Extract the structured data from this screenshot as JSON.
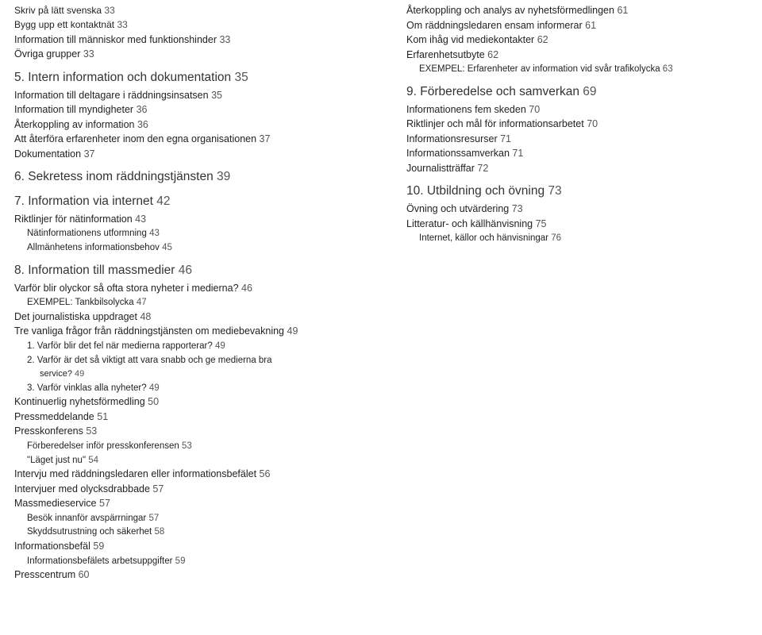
{
  "left": [
    {
      "lvl": "l0",
      "t": "Skriv på lätt svenska",
      "p": "33"
    },
    {
      "lvl": "l0",
      "t": "Bygg upp ett kontaktnät",
      "p": "33"
    },
    {
      "lvl": "h1",
      "t": "Information till människor med funktionshinder",
      "p": "33"
    },
    {
      "lvl": "h1",
      "t": "Övriga grupper",
      "p": "33"
    },
    {
      "lvl": "chapter",
      "t": "5. Intern information och dokumentation",
      "p": "35"
    },
    {
      "lvl": "h1",
      "t": "Information till deltagare i räddningsinsatsen",
      "p": "35"
    },
    {
      "lvl": "h1",
      "t": "Information till myndigheter",
      "p": "36"
    },
    {
      "lvl": "h1",
      "t": "Återkoppling av information",
      "p": "36"
    },
    {
      "lvl": "h1",
      "t": "Att återföra erfarenheter inom den egna organisationen",
      "p": "37"
    },
    {
      "lvl": "h1",
      "t": "Dokumentation",
      "p": "37"
    },
    {
      "lvl": "chapter",
      "t": "6. Sekretess inom räddningstjänsten",
      "p": "39"
    },
    {
      "lvl": "chapter",
      "t": "7. Information via internet",
      "p": "42"
    },
    {
      "lvl": "h1",
      "t": "Riktlinjer för nätinformation",
      "p": "43"
    },
    {
      "lvl": "h2",
      "t": "Nätinformationens utformning",
      "p": "43"
    },
    {
      "lvl": "h2",
      "t": "Allmänhetens informationsbehov",
      "p": "45"
    },
    {
      "lvl": "chapter",
      "t": "8. Information till massmedier",
      "p": "46"
    },
    {
      "lvl": "h1",
      "t": "Varför blir olyckor så ofta stora nyheter i medierna?",
      "p": "46"
    },
    {
      "lvl": "h2",
      "t": "EXEMPEL: Tankbilsolycka",
      "p": "47"
    },
    {
      "lvl": "h1",
      "t": "Det journalistiska uppdraget",
      "p": "48"
    },
    {
      "lvl": "h1",
      "t": "Tre vanliga frågor från räddningstjänsten om mediebevakning",
      "p": "49"
    },
    {
      "lvl": "h2",
      "t": "1. Varför blir det fel när medierna rapporterar?",
      "p": "49"
    },
    {
      "lvl": "h2",
      "t": "2. Varför är det så viktigt att vara snabb och ge medierna bra",
      "p": ""
    },
    {
      "lvl": "h3",
      "t": "service?",
      "p": "49"
    },
    {
      "lvl": "h2",
      "t": "3. Varför vinklas alla nyheter?",
      "p": "49"
    },
    {
      "lvl": "h1",
      "t": "Kontinuerlig nyhetsförmedling",
      "p": "50"
    },
    {
      "lvl": "h1",
      "t": "Pressmeddelande",
      "p": "51"
    },
    {
      "lvl": "h1",
      "t": "Presskonferens",
      "p": "53"
    },
    {
      "lvl": "h2",
      "t": "Förberedelser inför presskonferensen",
      "p": "53"
    },
    {
      "lvl": "h2",
      "t": "\"Läget just nu\"",
      "p": "54"
    },
    {
      "lvl": "h1",
      "t": "Intervju med räddningsledaren eller informationsbefälet",
      "p": "56"
    },
    {
      "lvl": "h1",
      "t": "Intervjuer med olycksdrabbade",
      "p": "57"
    },
    {
      "lvl": "h1",
      "t": "Massmedieservice",
      "p": "57"
    },
    {
      "lvl": "h2",
      "t": "Besök innanför avspärrningar",
      "p": "57"
    },
    {
      "lvl": "h2",
      "t": "Skyddsutrustning och säkerhet",
      "p": "58"
    },
    {
      "lvl": "h1",
      "t": "Informationsbefäl",
      "p": "59"
    },
    {
      "lvl": "h2",
      "t": "Informationsbefälets arbetsuppgifter",
      "p": "59"
    },
    {
      "lvl": "h1",
      "t": "Presscentrum",
      "p": "60"
    }
  ],
  "right": [
    {
      "lvl": "h1",
      "t": "Återkoppling och analys av nyhetsförmedlingen",
      "p": "61"
    },
    {
      "lvl": "h1",
      "t": "Om räddningsledaren ensam informerar",
      "p": "61"
    },
    {
      "lvl": "h1",
      "t": "Kom ihåg vid mediekontakter",
      "p": "62"
    },
    {
      "lvl": "h1",
      "t": "Erfarenhetsutbyte",
      "p": "62"
    },
    {
      "lvl": "h2",
      "t": "EXEMPEL: Erfarenheter av information vid svår trafikolycka",
      "p": "63"
    },
    {
      "lvl": "chapter",
      "t": "9. Förberedelse och samverkan",
      "p": "69"
    },
    {
      "lvl": "h1",
      "t": "Informationens fem skeden",
      "p": "70"
    },
    {
      "lvl": "h1",
      "t": "Riktlinjer och mål för informationsarbetet",
      "p": "70"
    },
    {
      "lvl": "h1",
      "t": "Informationsresurser",
      "p": "71"
    },
    {
      "lvl": "h1",
      "t": "Informationssamverkan",
      "p": "71"
    },
    {
      "lvl": "h1",
      "t": "Journalistträffar",
      "p": "72"
    },
    {
      "lvl": "chapter",
      "t": "10. Utbildning och övning",
      "p": "73"
    },
    {
      "lvl": "h1",
      "t": "Övning och utvärdering",
      "p": "73"
    },
    {
      "lvl": "h1",
      "t": "Litteratur- och källhänvisning",
      "p": "75"
    },
    {
      "lvl": "h2",
      "t": "Internet, källor och hänvisningar",
      "p": "76"
    }
  ]
}
